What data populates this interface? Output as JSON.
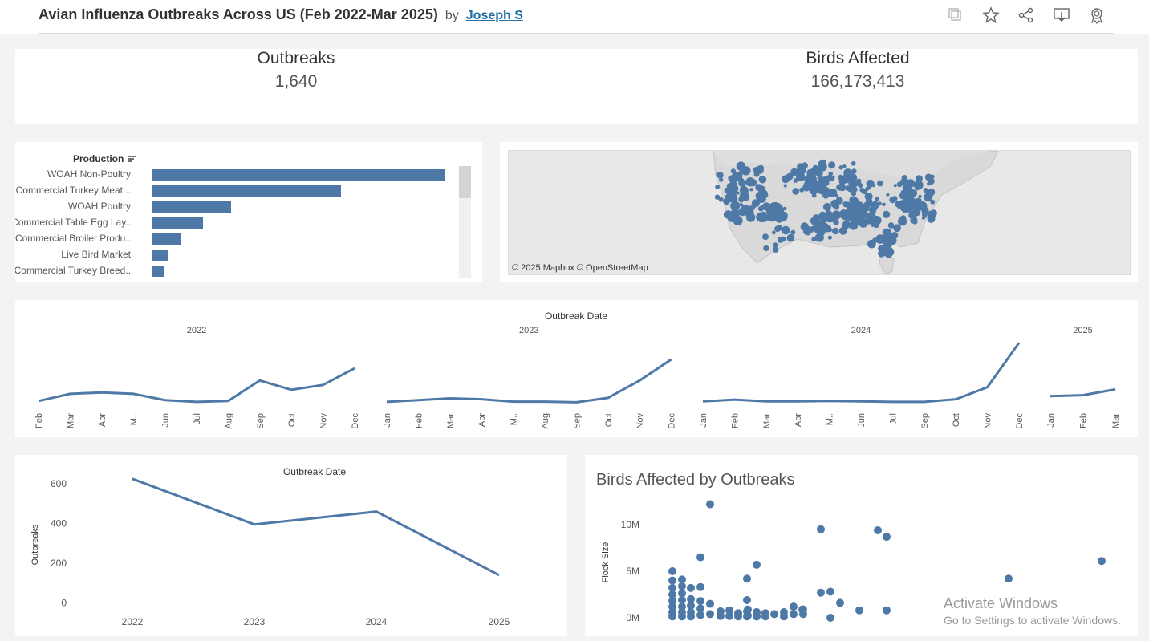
{
  "header": {
    "title": "Avian Influenza Outbreaks Across US (Feb 2022-Mar 2025)",
    "by": "by",
    "author": "Joseph S",
    "icons": [
      "copy-icon",
      "star-icon",
      "share-icon",
      "download-icon",
      "badge-icon"
    ]
  },
  "kpis": {
    "outbreaks_label": "Outbreaks",
    "outbreaks_value": "1,640",
    "birds_label": "Birds Affected",
    "birds_value": "166,173,413"
  },
  "production": {
    "header": "Production",
    "bars": [
      {
        "label": "WOAH Non-Poultry",
        "value": 365
      },
      {
        "label": "Commercial Turkey Meat ..",
        "value": 235
      },
      {
        "label": "WOAH Poultry",
        "value": 98
      },
      {
        "label": "Commercial Table Egg Lay..",
        "value": 63
      },
      {
        "label": "Commercial Broiler Produ..",
        "value": 36
      },
      {
        "label": "Live Bird Market",
        "value": 19
      },
      {
        "label": "Commercial Turkey Breed..",
        "value": 15
      }
    ]
  },
  "map": {
    "credit": "© 2025 Mapbox  © OpenStreetMap"
  },
  "monthly": {
    "title": "Outbreak Date",
    "years": [
      {
        "label": "2022",
        "months": [
          "Feb",
          "Mar",
          "Apr",
          "M..",
          "Jun",
          "Jul",
          "Aug",
          "Sep",
          "Oct",
          "Nov",
          "Dec"
        ],
        "values": [
          8,
          40,
          46,
          40,
          12,
          4,
          8,
          100,
          58,
          80,
          155
        ]
      },
      {
        "label": "2023",
        "months": [
          "Jan",
          "Feb",
          "Mar",
          "Apr",
          "M..",
          "Aug",
          "Sep",
          "Oct",
          "Nov",
          "Dec"
        ],
        "values": [
          4,
          12,
          20,
          16,
          5,
          5,
          2,
          22,
          100,
          195
        ]
      },
      {
        "label": "2024",
        "months": [
          "Jan",
          "Feb",
          "Mar",
          "Apr",
          "M..",
          "Jun",
          "Jul",
          "Sep",
          "Oct",
          "Nov",
          "Dec"
        ],
        "values": [
          6,
          14,
          6,
          6,
          8,
          6,
          4,
          4,
          16,
          70,
          270
        ]
      },
      {
        "label": "2025",
        "months": [
          "Jan",
          "Feb",
          "Mar"
        ],
        "values": [
          30,
          34,
          60
        ]
      }
    ]
  },
  "yearly": {
    "title": "Outbreak Date",
    "ylabel": "Outbreaks",
    "yticks": [
      "0",
      "200",
      "400",
      "600"
    ]
  },
  "scatter": {
    "title": "Birds Affected by Outbreaks",
    "ylabel": "Flock Size",
    "yticks": [
      "0M",
      "5M",
      "10M"
    ]
  },
  "chart_data": [
    {
      "type": "line",
      "title": "Outbreak Date",
      "xlabel": "Outbreak Date",
      "ylabel": "Outbreaks",
      "x": [
        "2022",
        "2023",
        "2024",
        "2025"
      ],
      "values": [
        625,
        395,
        460,
        140
      ],
      "ylim": [
        0,
        650
      ]
    },
    {
      "type": "scatter",
      "title": "Birds Affected by Outbreaks",
      "ylabel": "Flock Size",
      "ylim": [
        0,
        12500000
      ],
      "points": [
        {
          "y": 5000000,
          "col": 0
        },
        {
          "y": 4000000,
          "col": 0
        },
        {
          "y": 3200000,
          "col": 0
        },
        {
          "y": 2500000,
          "col": 0
        },
        {
          "y": 1800000,
          "col": 0
        },
        {
          "y": 1200000,
          "col": 0
        },
        {
          "y": 600000,
          "col": 0
        },
        {
          "y": 150000,
          "col": 0
        },
        {
          "y": 4100000,
          "col": 1
        },
        {
          "y": 3400000,
          "col": 1
        },
        {
          "y": 2600000,
          "col": 1
        },
        {
          "y": 1900000,
          "col": 1
        },
        {
          "y": 1200000,
          "col": 1
        },
        {
          "y": 600000,
          "col": 1
        },
        {
          "y": 150000,
          "col": 1
        },
        {
          "y": 3200000,
          "col": 2
        },
        {
          "y": 2000000,
          "col": 2
        },
        {
          "y": 1300000,
          "col": 2
        },
        {
          "y": 600000,
          "col": 2
        },
        {
          "y": 150000,
          "col": 2
        },
        {
          "y": 6500000,
          "col": 3
        },
        {
          "y": 3300000,
          "col": 3
        },
        {
          "y": 1800000,
          "col": 3
        },
        {
          "y": 1000000,
          "col": 3
        },
        {
          "y": 300000,
          "col": 3
        },
        {
          "y": 12200000,
          "col": 4
        },
        {
          "y": 1500000,
          "col": 4
        },
        {
          "y": 400000,
          "col": 4
        },
        {
          "y": 700000,
          "col": 5
        },
        {
          "y": 200000,
          "col": 5
        },
        {
          "y": 800000,
          "col": 6
        },
        {
          "y": 200000,
          "col": 6
        },
        {
          "y": 500000,
          "col": 7
        },
        {
          "y": 150000,
          "col": 7
        },
        {
          "y": 900000,
          "col": 8
        },
        {
          "y": 250000,
          "col": 8
        },
        {
          "y": 600000,
          "col": 9
        },
        {
          "y": 150000,
          "col": 9
        },
        {
          "y": 4200000,
          "col": 10
        },
        {
          "y": 1900000,
          "col": 10
        },
        {
          "y": 700000,
          "col": 10
        },
        {
          "y": 150000,
          "col": 10
        },
        {
          "y": 5700000,
          "col": 11
        },
        {
          "y": 600000,
          "col": 11
        },
        {
          "y": 150000,
          "col": 11
        },
        {
          "y": 500000,
          "col": 12
        },
        {
          "y": 150000,
          "col": 12
        },
        {
          "y": 400000,
          "col": 13
        },
        {
          "y": 600000,
          "col": 14
        },
        {
          "y": 150000,
          "col": 14
        },
        {
          "y": 1200000,
          "col": 15
        },
        {
          "y": 400000,
          "col": 15
        },
        {
          "y": 900000,
          "col": 16
        },
        {
          "y": 900000,
          "col": 17
        },
        {
          "y": 400000,
          "col": 17
        },
        {
          "y": 9500000,
          "col": 18
        },
        {
          "y": 2700000,
          "col": 18
        },
        {
          "y": 2800000,
          "col": 19
        },
        {
          "y": 0,
          "col": 19
        },
        {
          "y": 1600000,
          "col": 20
        },
        {
          "y": 800000,
          "col": 21
        },
        {
          "y": 9400000,
          "col": 22
        },
        {
          "y": 8700000,
          "col": 23
        },
        {
          "y": 800000,
          "col": 23
        },
        {
          "y": 4200000,
          "col": 24
        },
        {
          "y": 6100000,
          "col": 25
        }
      ]
    }
  ]
}
